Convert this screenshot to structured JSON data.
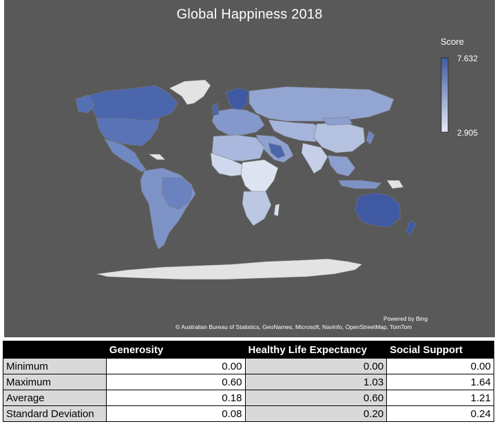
{
  "chart_data": {
    "type": "map",
    "title": "Global Happiness 2018",
    "legend": {
      "title": "Score",
      "max": "7.632",
      "min": "2.905",
      "color_high": "#3f5aa3",
      "color_low": "#e6ebf5",
      "placement": "top-right"
    },
    "powered_by": "Powered by Bing",
    "attribution": "© Australian Bureau of Statistics, GeoNames, Microsoft, Navinfo, OpenStreetMap, TomTom",
    "background": "#595959",
    "no_data_color": "#e3e3e3"
  },
  "table": {
    "headers": [
      "",
      "Generosity",
      "Healthy Life Expectancy",
      "Social Support"
    ],
    "rows": [
      {
        "label": "Minimum",
        "values": [
          "0.00",
          "0.00",
          "0.00"
        ]
      },
      {
        "label": "Maximum",
        "values": [
          "0.60",
          "1.03",
          "1.64"
        ]
      },
      {
        "label": "Average",
        "values": [
          "0.18",
          "0.60",
          "1.21"
        ]
      },
      {
        "label": "Standard Deviation",
        "values": [
          "0.08",
          "0.20",
          "0.24"
        ]
      }
    ]
  }
}
